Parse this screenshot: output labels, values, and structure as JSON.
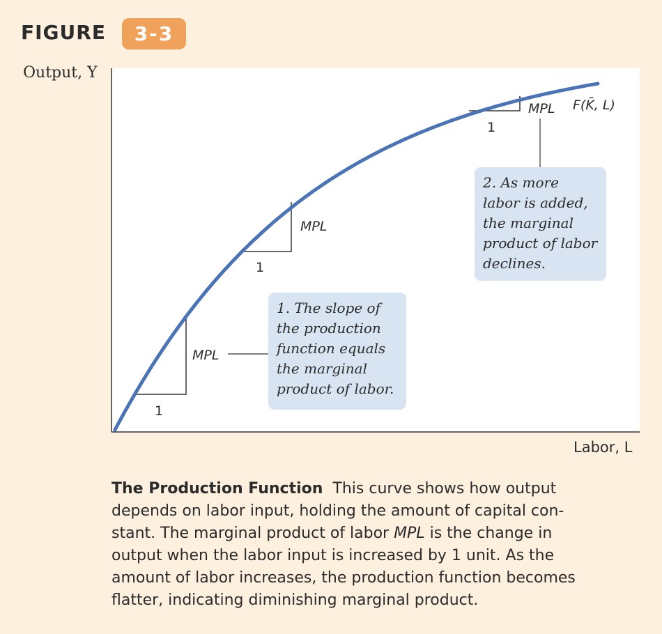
{
  "figure": {
    "label": "FIGURE",
    "number": "3-3"
  },
  "chart_data": {
    "type": "line",
    "title": "",
    "xlabel": "Labor, L",
    "ylabel": "Output, Y",
    "curve_label": "F(K̄, L)",
    "grid": false,
    "series": [
      {
        "name": "F(K̄, L)",
        "shape": "concave",
        "description_points": "increasing at a decreasing rate"
      }
    ],
    "slope_triangles": [
      {
        "run_label": "1",
        "rise_label": "MPL"
      },
      {
        "run_label": "1",
        "rise_label": "MPL"
      },
      {
        "run_label": "1",
        "rise_label": "MPL"
      }
    ],
    "annotations": [
      {
        "lines": [
          "1. The slope of",
          "the production",
          "function equals",
          "the marginal",
          "product of labor."
        ]
      },
      {
        "lines": [
          "2. As more",
          "labor is added,",
          "the marginal",
          "product of labor",
          "declines."
        ]
      }
    ]
  },
  "caption": {
    "title": "The Production Function",
    "lines": [
      "This curve shows how output",
      "depends on labor input, holding the amount of capital con-",
      "stant. The marginal product of labor ",
      " is the change in",
      "output when the labor input is increased by 1 unit. As the",
      "amount of labor increases, the production function becomes",
      "flatter, indicating diminishing marginal product."
    ],
    "mpl_term": "MPL"
  },
  "colors": {
    "background": "#fdf0de",
    "plot_background": "#ffffff",
    "curve": "#4a74b5",
    "badge": "#f0a15a",
    "callout": "#d8e4f2"
  }
}
